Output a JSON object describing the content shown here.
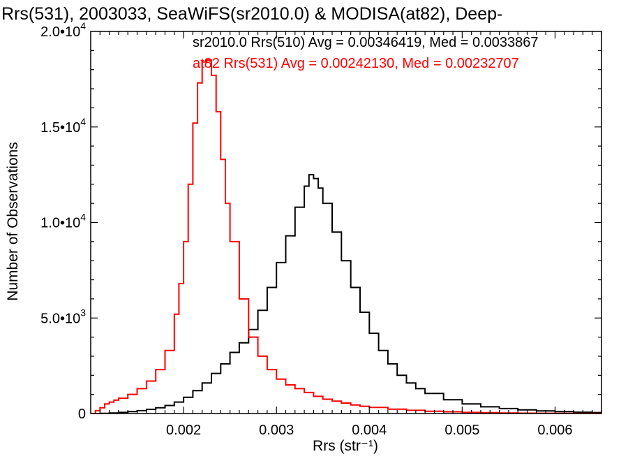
{
  "chart_data": {
    "type": "line",
    "title": "Rrs(531), 2003033, SeaWiFS(sr2010.0) & MODISA(at82), Deep-",
    "xlabel": "Rrs (str⁻¹)",
    "ylabel": "Number of Observations",
    "xlim": [
      0.001,
      0.0065
    ],
    "ylim": [
      0,
      20000
    ],
    "x_ticks": [
      0.002,
      0.003,
      0.004,
      0.005,
      0.006
    ],
    "x_tick_labels": [
      "0.002",
      "0.003",
      "0.004",
      "0.005",
      "0.006"
    ],
    "y_ticks": [
      0,
      5000,
      10000,
      15000,
      20000
    ],
    "y_tick_labels": [
      {
        "mant": "0",
        "exp": ""
      },
      {
        "mant": "5.0•10",
        "exp": "3"
      },
      {
        "mant": "1.0•10",
        "exp": "4"
      },
      {
        "mant": "1.5•10",
        "exp": "4"
      },
      {
        "mant": "2.0•10",
        "exp": "4"
      }
    ],
    "grid": false,
    "annotations": [
      {
        "text": "sr2010.0 Rrs(510) Avg = 0.00346419, Med = 0.0033867",
        "color": "#000000"
      },
      {
        "text": "at82 Rrs(531) Avg = 0.00242130, Med = 0.00232707",
        "color": "#ff0000"
      }
    ],
    "series": [
      {
        "color": "#000000",
        "x": [
          0.001,
          0.0011,
          0.0012,
          0.0013,
          0.0014,
          0.0015,
          0.0016,
          0.0017,
          0.0018,
          0.0019,
          0.002,
          0.0021,
          0.0022,
          0.0023,
          0.0024,
          0.0025,
          0.0026,
          0.0027,
          0.0028,
          0.0029,
          0.003,
          0.0031,
          0.0032,
          0.0033,
          0.00335,
          0.0034,
          0.00345,
          0.0035,
          0.0036,
          0.0037,
          0.0038,
          0.0039,
          0.004,
          0.0041,
          0.0042,
          0.0043,
          0.0044,
          0.0045,
          0.0046,
          0.0048,
          0.005,
          0.0052,
          0.0054,
          0.0056,
          0.0058,
          0.006,
          0.0062,
          0.0064,
          0.0065
        ],
        "y": [
          0,
          10,
          30,
          60,
          100,
          150,
          220,
          300,
          420,
          600,
          850,
          1200,
          1600,
          2100,
          2600,
          3200,
          3700,
          4400,
          5400,
          6600,
          7900,
          9300,
          10800,
          11900,
          12500,
          12300,
          11800,
          11000,
          9500,
          8000,
          6600,
          5300,
          4200,
          3300,
          2600,
          2000,
          1600,
          1300,
          1050,
          720,
          500,
          350,
          260,
          190,
          140,
          100,
          70,
          50,
          40
        ]
      },
      {
        "color": "#ff0000",
        "x": [
          0.001,
          0.00105,
          0.0011,
          0.00115,
          0.0012,
          0.00125,
          0.0013,
          0.0014,
          0.0015,
          0.0016,
          0.0017,
          0.0018,
          0.0019,
          0.00195,
          0.002,
          0.00205,
          0.0021,
          0.00215,
          0.0022,
          0.00225,
          0.0023,
          0.00235,
          0.0024,
          0.00245,
          0.0025,
          0.0026,
          0.0027,
          0.0028,
          0.0029,
          0.003,
          0.0031,
          0.0032,
          0.0033,
          0.0034,
          0.0035,
          0.0036,
          0.0037,
          0.0038,
          0.0039,
          0.004,
          0.0042,
          0.0044,
          0.0046,
          0.0048,
          0.005,
          0.0052,
          0.0054,
          0.0056,
          0.0058,
          0.006,
          0.0062,
          0.0065
        ],
        "y": [
          0,
          150,
          300,
          500,
          600,
          700,
          800,
          1000,
          1300,
          1700,
          2300,
          3300,
          5200,
          6800,
          9000,
          12000,
          15200,
          17300,
          18400,
          18500,
          17700,
          15800,
          13300,
          11000,
          9000,
          6000,
          4000,
          3000,
          2300,
          1800,
          1500,
          1300,
          1100,
          900,
          750,
          650,
          550,
          450,
          380,
          320,
          230,
          170,
          120,
          90,
          60,
          45,
          30,
          20,
          15,
          10,
          5,
          3
        ]
      }
    ]
  }
}
